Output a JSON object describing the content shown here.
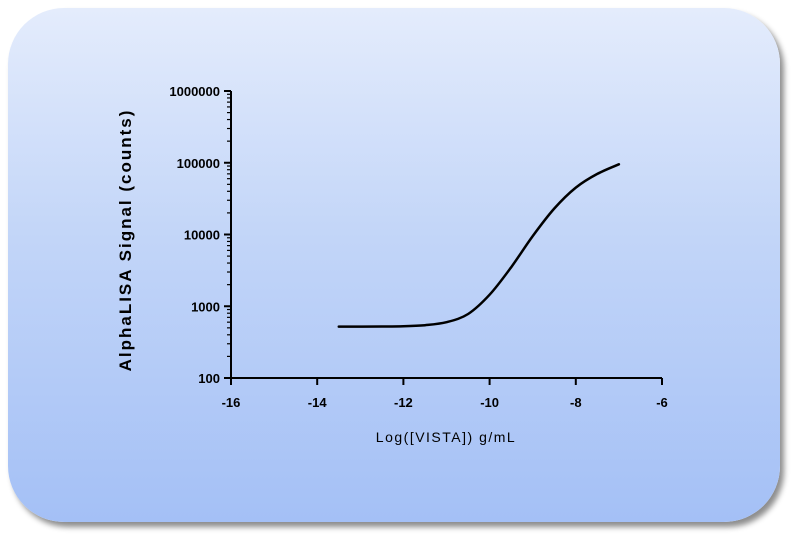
{
  "chart_data": {
    "type": "line",
    "xlabel": "Log([VISTA]) g/mL",
    "ylabel": "AlphaLISA Signal (counts)",
    "xlim": [
      -16,
      -6
    ],
    "ylim": [
      100,
      1000000
    ],
    "y_scale": "log",
    "x_ticks": [
      -16,
      -14,
      -12,
      -10,
      -8,
      -6
    ],
    "x_tick_labels": [
      "-16",
      "-14",
      "-12",
      "-10",
      "-8",
      "-6"
    ],
    "y_ticks": [
      100,
      1000,
      10000,
      100000,
      1000000
    ],
    "y_tick_labels": [
      "100",
      "1000",
      "10000",
      "100000",
      "1000000"
    ],
    "grid": false,
    "series": [
      {
        "color": "#000000",
        "x": [
          -13.5,
          -12.5,
          -12.0,
          -11.5,
          -11.0,
          -10.5,
          -10.0,
          -9.5,
          -9.0,
          -8.5,
          -8.0,
          -7.5,
          -7.0
        ],
        "y": [
          520,
          522,
          527,
          545,
          600,
          780,
          1450,
          3500,
          9500,
          23000,
          45000,
          70000,
          95000
        ]
      }
    ]
  }
}
